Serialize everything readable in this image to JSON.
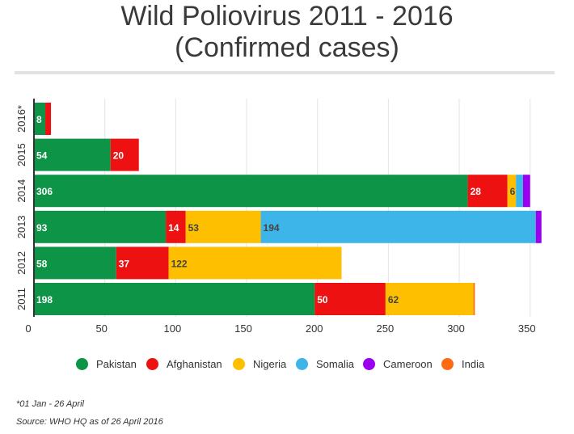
{
  "header": {
    "title_line1": "Wild Poliovirus 2011 - 2016",
    "title_line2": "(Confirmed cases)"
  },
  "footer": {
    "note": "*01 Jan - 26 April",
    "source": "Source: WHO HQ as of 26 April 2016"
  },
  "chart_data": {
    "type": "bar",
    "orientation": "horizontal",
    "stacked": true,
    "categories": [
      "2016*",
      "2015",
      "2014",
      "2013",
      "2012",
      "2011"
    ],
    "series": [
      {
        "name": "Pakistan",
        "color": "#0d9447",
        "values": [
          8,
          54,
          306,
          93,
          58,
          198
        ]
      },
      {
        "name": "Afghanistan",
        "color": "#ee1111",
        "values": [
          4,
          20,
          28,
          14,
          37,
          50
        ]
      },
      {
        "name": "Nigeria",
        "color": "#fdbf00",
        "values": [
          0,
          0,
          6,
          53,
          122,
          62
        ]
      },
      {
        "name": "Somalia",
        "color": "#3eb5e8",
        "values": [
          0,
          0,
          5,
          194,
          0,
          0
        ]
      },
      {
        "name": "Cameroon",
        "color": "#9a00ee",
        "values": [
          0,
          0,
          5,
          4,
          0,
          0
        ]
      },
      {
        "name": "India",
        "color": "#ff6a13",
        "values": [
          0,
          0,
          0,
          0,
          0,
          1
        ]
      }
    ],
    "data_labels": [
      [
        "8",
        "",
        "",
        "",
        "",
        ""
      ],
      [
        "54",
        "20",
        "",
        "",
        "",
        ""
      ],
      [
        "306",
        "28",
        "6",
        "",
        "",
        ""
      ],
      [
        "93",
        "14",
        "53",
        "194",
        "",
        ""
      ],
      [
        "58",
        "37",
        "122",
        "",
        "",
        ""
      ],
      [
        "198",
        "50",
        "62",
        "",
        "",
        ""
      ]
    ],
    "x_ticks": [
      0,
      50,
      100,
      150,
      200,
      250,
      300,
      350
    ],
    "xlim": [
      0,
      362
    ],
    "grid": true,
    "legend": "bottom"
  }
}
